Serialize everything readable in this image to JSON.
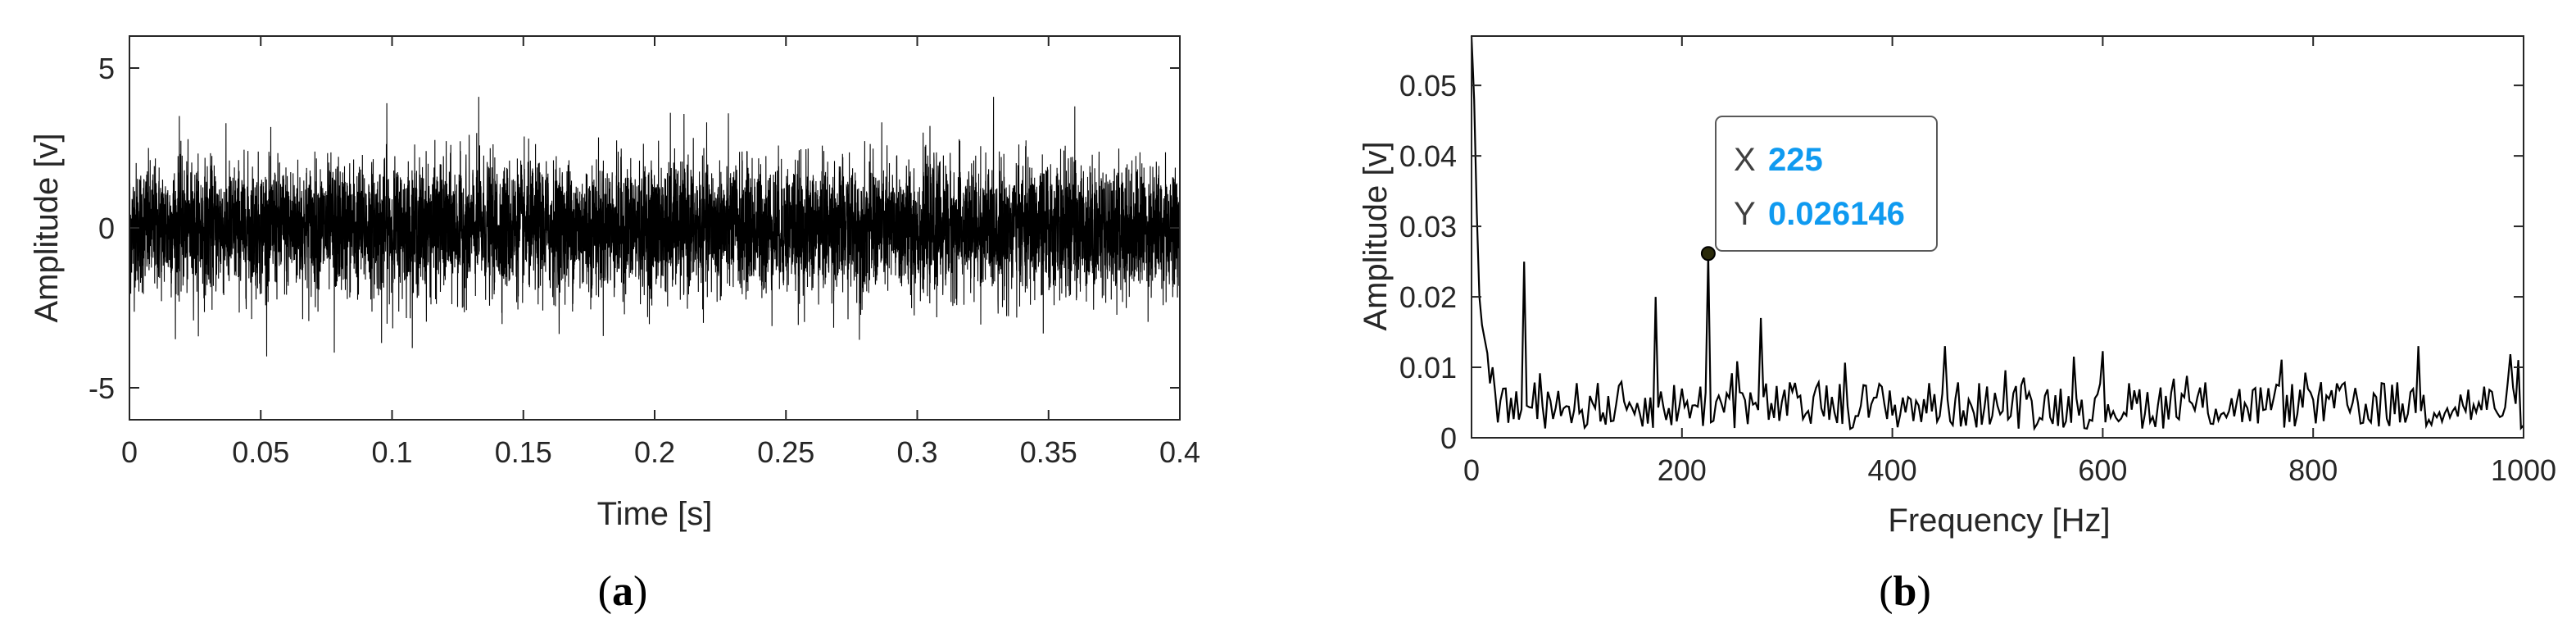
{
  "colors": {
    "axis": "#262626",
    "trace": "#000000",
    "datatip_value": "#0f9af0",
    "datatip_border": "#595959",
    "datatip_bg": "#ffffff",
    "marker_fill": "#2a2a0a"
  },
  "chart_data": [
    {
      "type": "line",
      "panel_label": "a",
      "xlabel": "Time [s]",
      "ylabel": "Amplitude [v]",
      "xlim": [
        0,
        0.4
      ],
      "ylim": [
        -6,
        6
      ],
      "x_ticks": [
        0,
        0.05,
        0.1,
        0.15,
        0.2,
        0.25,
        0.3,
        0.35,
        0.4
      ],
      "x_tick_labels": [
        "0",
        "0.05",
        "0.1",
        "0.15",
        "0.2",
        "0.25",
        "0.3",
        "0.35",
        "0.4"
      ],
      "y_ticks": [
        -5,
        0,
        5
      ],
      "y_tick_labels": [
        "-5",
        "0",
        "5"
      ],
      "grid": false,
      "series": [
        {
          "samples": 8000,
          "stddev": 1.0,
          "envelope_max": 4.1,
          "envelope_min": -4.1,
          "peaks": [
            {
              "x": 0.019,
              "y": 3.5
            },
            {
              "x": 0.098,
              "y": 3.9
            },
            {
              "x": 0.133,
              "y": 4.1
            },
            {
              "x": 0.206,
              "y": 3.6
            },
            {
              "x": 0.36,
              "y": 3.8
            },
            {
              "x": 0.078,
              "y": -3.9
            },
            {
              "x": 0.096,
              "y": -3.6
            },
            {
              "x": 0.278,
              "y": -3.5
            },
            {
              "x": 0.348,
              "y": -3.3
            }
          ]
        }
      ]
    },
    {
      "type": "line",
      "panel_label": "b",
      "xlabel": "Frequency [Hz]",
      "ylabel": "Amplitude [v]",
      "xlim": [
        0,
        1000
      ],
      "ylim": [
        0,
        0.057
      ],
      "x_ticks": [
        0,
        200,
        400,
        600,
        800,
        1000
      ],
      "x_tick_labels": [
        "0",
        "200",
        "400",
        "600",
        "800",
        "1000"
      ],
      "y_ticks": [
        0,
        0.01,
        0.02,
        0.03,
        0.04,
        0.05
      ],
      "y_tick_labels": [
        "0",
        "0.01",
        "0.02",
        "0.03",
        "0.04",
        "0.05"
      ],
      "grid": false,
      "series": [
        {
          "step_hz": 2.5,
          "noise_floor": 0.005,
          "points": [
            {
              "x": 0,
              "y": 0.057
            },
            {
              "x": 2.5,
              "y": 0.048
            },
            {
              "x": 5,
              "y": 0.032
            },
            {
              "x": 7.5,
              "y": 0.02
            },
            {
              "x": 10,
              "y": 0.016
            },
            {
              "x": 12.5,
              "y": 0.014
            },
            {
              "x": 15,
              "y": 0.012
            },
            {
              "x": 20,
              "y": 0.01
            },
            {
              "x": 50,
              "y": 0.025
            },
            {
              "x": 175,
              "y": 0.02
            },
            {
              "x": 225,
              "y": 0.026146
            },
            {
              "x": 275,
              "y": 0.017
            },
            {
              "x": 450,
              "y": 0.013
            },
            {
              "x": 900,
              "y": 0.013
            }
          ]
        }
      ],
      "annotations": [
        {
          "type": "datatip",
          "x_label": "X",
          "x_value": "225",
          "y_label": "Y",
          "y_value": "0.026146",
          "x": 225,
          "y": 0.026146
        }
      ]
    }
  ]
}
